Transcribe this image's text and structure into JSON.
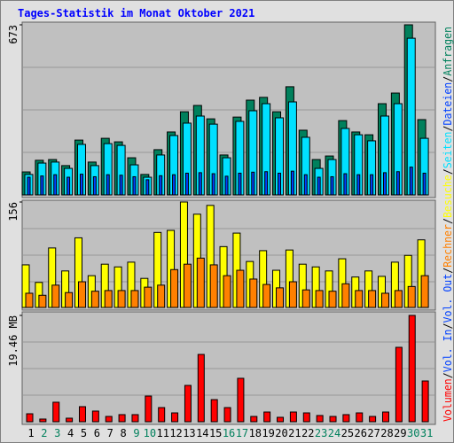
{
  "chart_data": [
    {
      "type": "bar",
      "title": "Tages-Statistik im Monat Oktober 2021",
      "ylim": [
        0,
        673
      ],
      "yticks": [
        673
      ],
      "series": [
        {
          "name": "Anfragen",
          "color": "#00805c",
          "values": [
            91,
            137,
            140,
            116,
            217,
            130,
            224,
            210,
            147,
            81,
            179,
            249,
            329,
            354,
            301,
            158,
            308,
            375,
            386,
            329,
            428,
            256,
            140,
            154,
            294,
            249,
            238,
            361,
            403,
            673,
            298
          ]
        },
        {
          "name": "Seiten",
          "color": "#00e0ff",
          "values": [
            81,
            126,
            130,
            105,
            200,
            116,
            203,
            196,
            119,
            70,
            158,
            235,
            284,
            312,
            280,
            147,
            291,
            333,
            361,
            305,
            368,
            228,
            105,
            140,
            263,
            238,
            214,
            312,
            361,
            620,
            224
          ]
        },
        {
          "name": "Dateien",
          "color": "#0040ff",
          "values": [
            70,
            75,
            80,
            70,
            82,
            72,
            80,
            78,
            72,
            60,
            76,
            80,
            86,
            88,
            84,
            74,
            86,
            90,
            92,
            86,
            94,
            80,
            70,
            72,
            84,
            80,
            80,
            88,
            92,
            110,
            86
          ]
        }
      ]
    },
    {
      "type": "bar",
      "ylim": [
        0,
        156
      ],
      "yticks": [
        156
      ],
      "series": [
        {
          "name": "Besuche",
          "color": "#ffff00",
          "values": [
            63,
            37,
            88,
            54,
            103,
            47,
            64,
            60,
            67,
            43,
            111,
            114,
            156,
            138,
            151,
            90,
            110,
            68,
            84,
            55,
            85,
            64,
            60,
            54,
            72,
            45,
            54,
            46,
            67,
            77,
            100
          ]
        },
        {
          "name": "Rechner",
          "color": "#ff8000",
          "values": [
            21,
            18,
            33,
            22,
            38,
            24,
            25,
            25,
            25,
            30,
            33,
            56,
            64,
            73,
            63,
            47,
            55,
            42,
            34,
            29,
            38,
            26,
            25,
            24,
            35,
            25,
            25,
            21,
            25,
            31,
            47
          ]
        }
      ]
    },
    {
      "type": "bar",
      "ylim": [
        0,
        19.46
      ],
      "yticks": [
        {
          "value": 19.46,
          "label": "19.46 MB"
        }
      ],
      "categories": [
        "1",
        "2",
        "3",
        "4",
        "5",
        "6",
        "7",
        "8",
        "9",
        "10",
        "11",
        "12",
        "13",
        "14",
        "15",
        "16",
        "17",
        "18",
        "19",
        "20",
        "21",
        "22",
        "23",
        "24",
        "25",
        "26",
        "27",
        "28",
        "29",
        "30",
        "31"
      ],
      "category_colors": [
        "#000000",
        "#00805c",
        "#00805c",
        "#000000",
        "#000000",
        "#000000",
        "#000000",
        "#000000",
        "#00805c",
        "#00805c",
        "#000000",
        "#000000",
        "#000000",
        "#000000",
        "#000000",
        "#00805c",
        "#00805c",
        "#000000",
        "#000000",
        "#000000",
        "#000000",
        "#000000",
        "#00805c",
        "#00805c",
        "#000000",
        "#000000",
        "#000000",
        "#000000",
        "#000000",
        "#00805c",
        "#00805c"
      ],
      "series": [
        {
          "name": "Volumen",
          "color": "#ff0000",
          "values": [
            1.46,
            0.49,
            3.57,
            0.65,
            2.76,
            1.95,
            0.97,
            1.3,
            1.3,
            4.7,
            2.59,
            1.62,
            6.65,
            12.32,
            4.05,
            2.59,
            7.95,
            0.97,
            1.78,
            0.81,
            1.78,
            1.62,
            1.14,
            0.97,
            1.3,
            1.62,
            0.97,
            1.78,
            13.62,
            19.46,
            7.46
          ]
        }
      ],
      "legend_only": [
        {
          "name": "Vol. In",
          "color": "#0040ff"
        },
        {
          "name": "Vol. Out",
          "color": "#0040ff"
        }
      ],
      "legend_separator": "/"
    }
  ]
}
